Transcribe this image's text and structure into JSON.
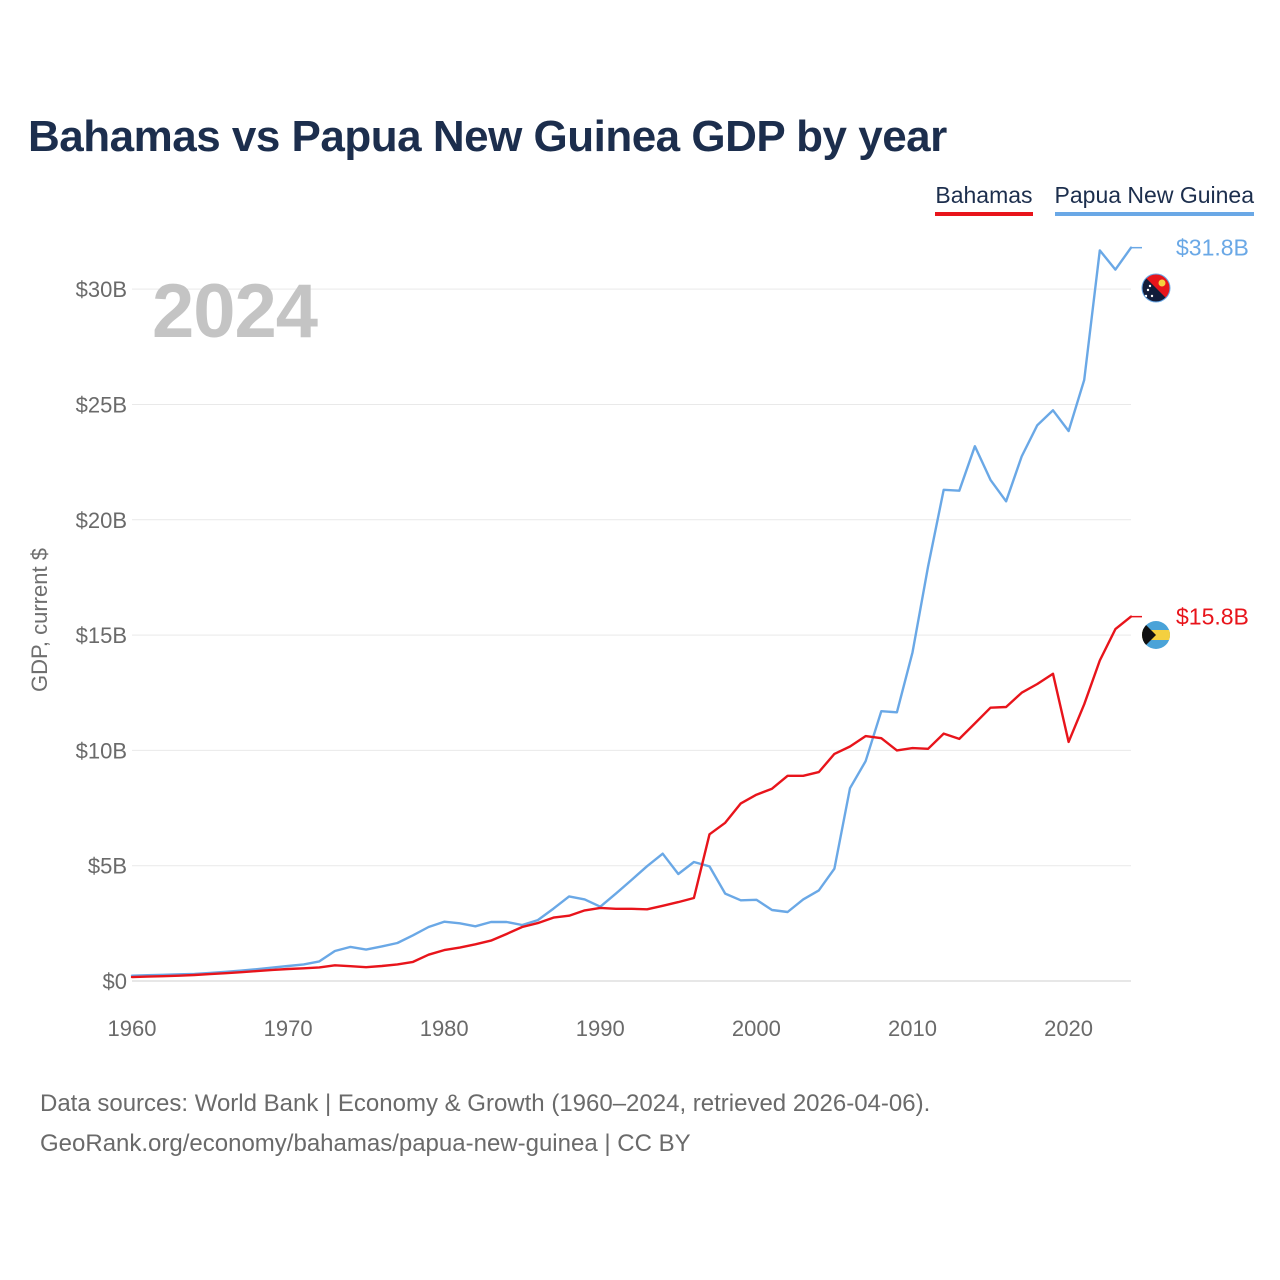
{
  "title": "Bahamas vs Papua New Guinea GDP by year",
  "year": "2024",
  "legend": [
    {
      "name": "Bahamas",
      "color": "#e8141b"
    },
    {
      "name": "Papua New Guinea",
      "color": "#6aa8e6"
    }
  ],
  "source": {
    "line1": "Data sources: World Bank | Economy & Growth (1960–2024, retrieved 2026-04-06).",
    "line2": "GeoRank.org/economy/bahamas/papua-new-guinea | CC BY"
  },
  "chart_data": {
    "type": "line",
    "title": "Bahamas vs Papua New Guinea GDP by year",
    "xlabel": "",
    "ylabel": "GDP, current $",
    "xlim": [
      1960,
      2024
    ],
    "ylim": [
      0,
      33
    ],
    "x_ticks": [
      1960,
      1970,
      1980,
      1990,
      2000,
      2010,
      2020
    ],
    "x_tick_labels": [
      "1960",
      "1970",
      "1980",
      "1990",
      "2000",
      "2010",
      "2020"
    ],
    "y_ticks": [
      0,
      5,
      10,
      15,
      20,
      25,
      30
    ],
    "y_tick_labels": [
      "$0",
      "$5B",
      "$10B",
      "$15B",
      "$20B",
      "$25B",
      "$30B"
    ],
    "grid": true,
    "legend_position": "top-right",
    "series": [
      {
        "name": "Bahamas",
        "color": "#e8141b",
        "end_label": "$15.8B",
        "x": [
          1960,
          1961,
          1962,
          1963,
          1964,
          1965,
          1966,
          1967,
          1968,
          1969,
          1970,
          1971,
          1972,
          1973,
          1974,
          1975,
          1976,
          1977,
          1978,
          1979,
          1980,
          1981,
          1982,
          1983,
          1984,
          1985,
          1986,
          1987,
          1988,
          1989,
          1990,
          1991,
          1992,
          1993,
          1994,
          1995,
          1996,
          1997,
          1998,
          1999,
          2000,
          2001,
          2002,
          2003,
          2004,
          2005,
          2006,
          2007,
          2008,
          2009,
          2010,
          2011,
          2012,
          2013,
          2014,
          2015,
          2016,
          2017,
          2018,
          2019,
          2020,
          2021,
          2022,
          2023,
          2024
        ],
        "values": [
          0.17,
          0.19,
          0.21,
          0.23,
          0.26,
          0.3,
          0.34,
          0.38,
          0.43,
          0.48,
          0.52,
          0.55,
          0.59,
          0.68,
          0.64,
          0.6,
          0.65,
          0.72,
          0.83,
          1.14,
          1.34,
          1.45,
          1.59,
          1.75,
          2.04,
          2.34,
          2.51,
          2.75,
          2.83,
          3.06,
          3.17,
          3.13,
          3.13,
          3.11,
          3.26,
          3.42,
          3.6,
          6.36,
          6.86,
          7.7,
          8.08,
          8.34,
          8.9,
          8.9,
          9.06,
          9.85,
          10.17,
          10.62,
          10.53,
          10.0,
          10.1,
          10.07,
          10.73,
          10.5,
          11.17,
          11.85,
          11.88,
          12.5,
          12.88,
          13.32,
          10.37,
          12.0,
          13.9,
          15.26,
          15.8
        ]
      },
      {
        "name": "Papua New Guinea",
        "color": "#6aa8e6",
        "end_label": "$31.8B",
        "x": [
          1960,
          1961,
          1962,
          1963,
          1964,
          1965,
          1966,
          1967,
          1968,
          1969,
          1970,
          1971,
          1972,
          1973,
          1974,
          1975,
          1976,
          1977,
          1978,
          1979,
          1980,
          1981,
          1982,
          1983,
          1984,
          1985,
          1986,
          1987,
          1988,
          1989,
          1990,
          1991,
          1992,
          1993,
          1994,
          1995,
          1996,
          1997,
          1998,
          1999,
          2000,
          2001,
          2002,
          2003,
          2004,
          2005,
          2006,
          2007,
          2008,
          2009,
          2010,
          2011,
          2012,
          2013,
          2014,
          2015,
          2016,
          2017,
          2018,
          2019,
          2020,
          2021,
          2022,
          2023,
          2024
        ],
        "values": [
          0.23,
          0.25,
          0.27,
          0.29,
          0.31,
          0.35,
          0.4,
          0.45,
          0.51,
          0.58,
          0.65,
          0.72,
          0.85,
          1.3,
          1.48,
          1.36,
          1.5,
          1.65,
          1.98,
          2.34,
          2.57,
          2.5,
          2.37,
          2.56,
          2.56,
          2.43,
          2.64,
          3.14,
          3.67,
          3.54,
          3.22,
          3.79,
          4.38,
          4.98,
          5.52,
          4.64,
          5.16,
          4.97,
          3.79,
          3.5,
          3.52,
          3.08,
          2.99,
          3.54,
          3.93,
          4.87,
          8.36,
          9.53,
          11.7,
          11.65,
          14.25,
          17.98,
          21.3,
          21.26,
          23.19,
          21.73,
          20.8,
          22.75,
          24.1,
          24.75,
          23.85,
          26.06,
          31.68,
          30.85,
          31.8
        ]
      }
    ]
  }
}
